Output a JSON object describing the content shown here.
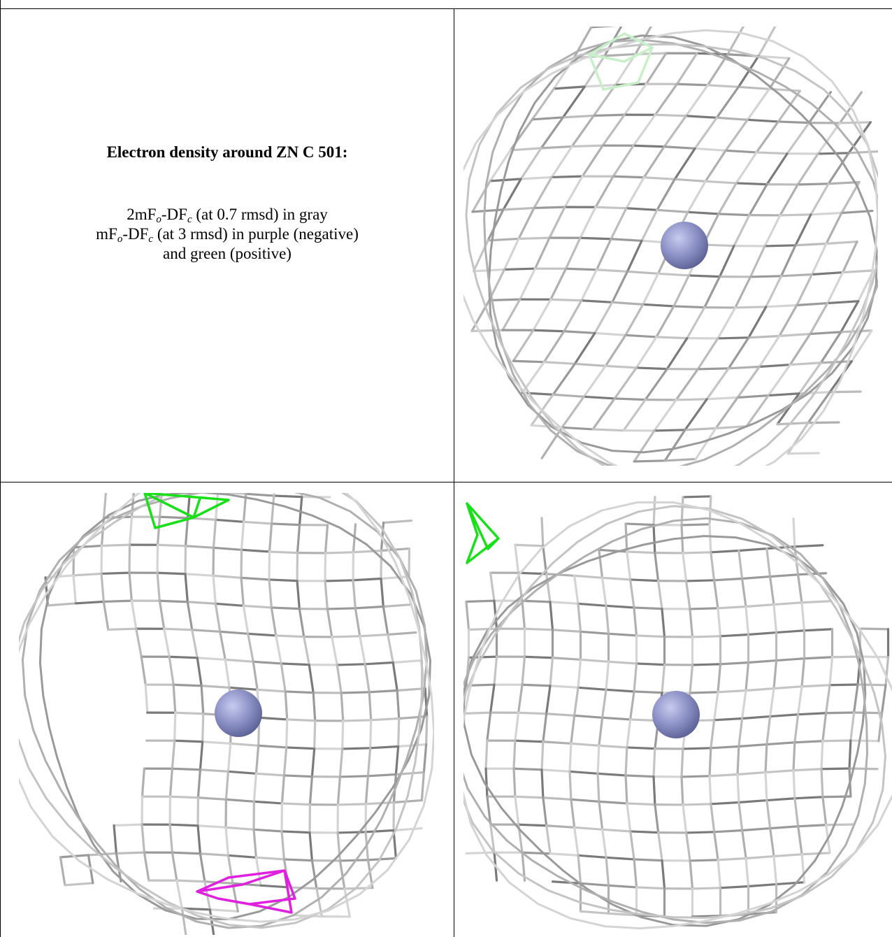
{
  "caption": {
    "title": "Electron density around ZN C 501:",
    "line1": [
      "2mF",
      "o",
      "-DF",
      "c",
      " (at 0.7 rmsd) in gray"
    ],
    "line2": [
      "mF",
      "o",
      "-DF",
      "c",
      " (at 3 rmsd) in purple (negative)"
    ],
    "line3": "and green (positive)"
  }
}
